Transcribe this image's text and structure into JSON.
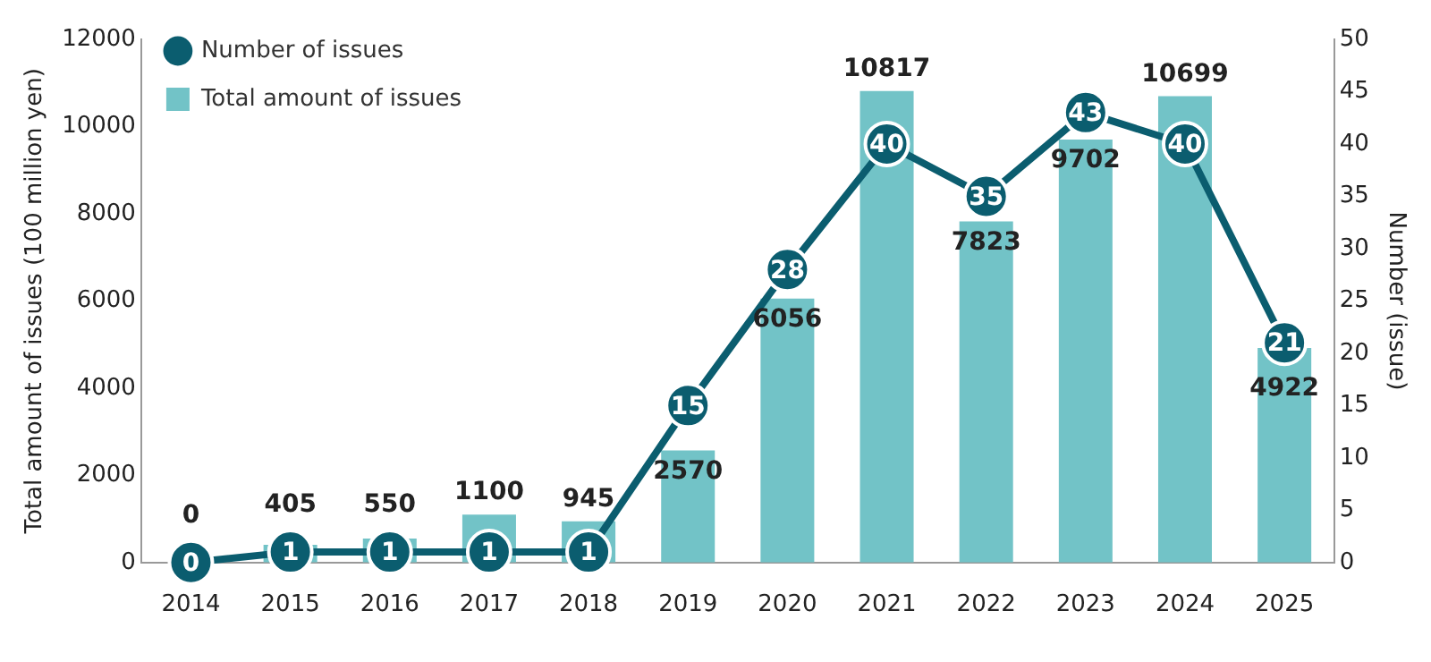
{
  "chart_data": {
    "type": "bar",
    "categories": [
      "2014",
      "2015",
      "2016",
      "2017",
      "2018",
      "2019",
      "2020",
      "2021",
      "2022",
      "2023",
      "2024",
      "2025"
    ],
    "ylabel": "Total amount of issues (100 million yen)",
    "y2label": "Number (issue)",
    "ylim": [
      0,
      12000
    ],
    "yticks": [
      0,
      2000,
      4000,
      6000,
      8000,
      10000,
      12000
    ],
    "y2lim": [
      0,
      50
    ],
    "y2ticks": [
      0,
      5,
      10,
      15,
      20,
      25,
      30,
      35,
      40,
      45,
      50
    ],
    "legend": "top left",
    "data_labels": true,
    "grid": false,
    "series": [
      {
        "name": "Total amount of issues",
        "color": "#72c3c7",
        "values": [
          0,
          405,
          550,
          1100,
          945,
          2570,
          6056,
          10817,
          7823,
          9702,
          10699,
          4922
        ]
      },
      {
        "name": "Number of issues",
        "type": "line",
        "axis": "y2",
        "color": "#0b5d6f",
        "marker": "circle",
        "values": [
          0,
          1,
          1,
          1,
          1,
          15,
          28,
          40,
          35,
          43,
          40,
          21
        ]
      }
    ]
  }
}
